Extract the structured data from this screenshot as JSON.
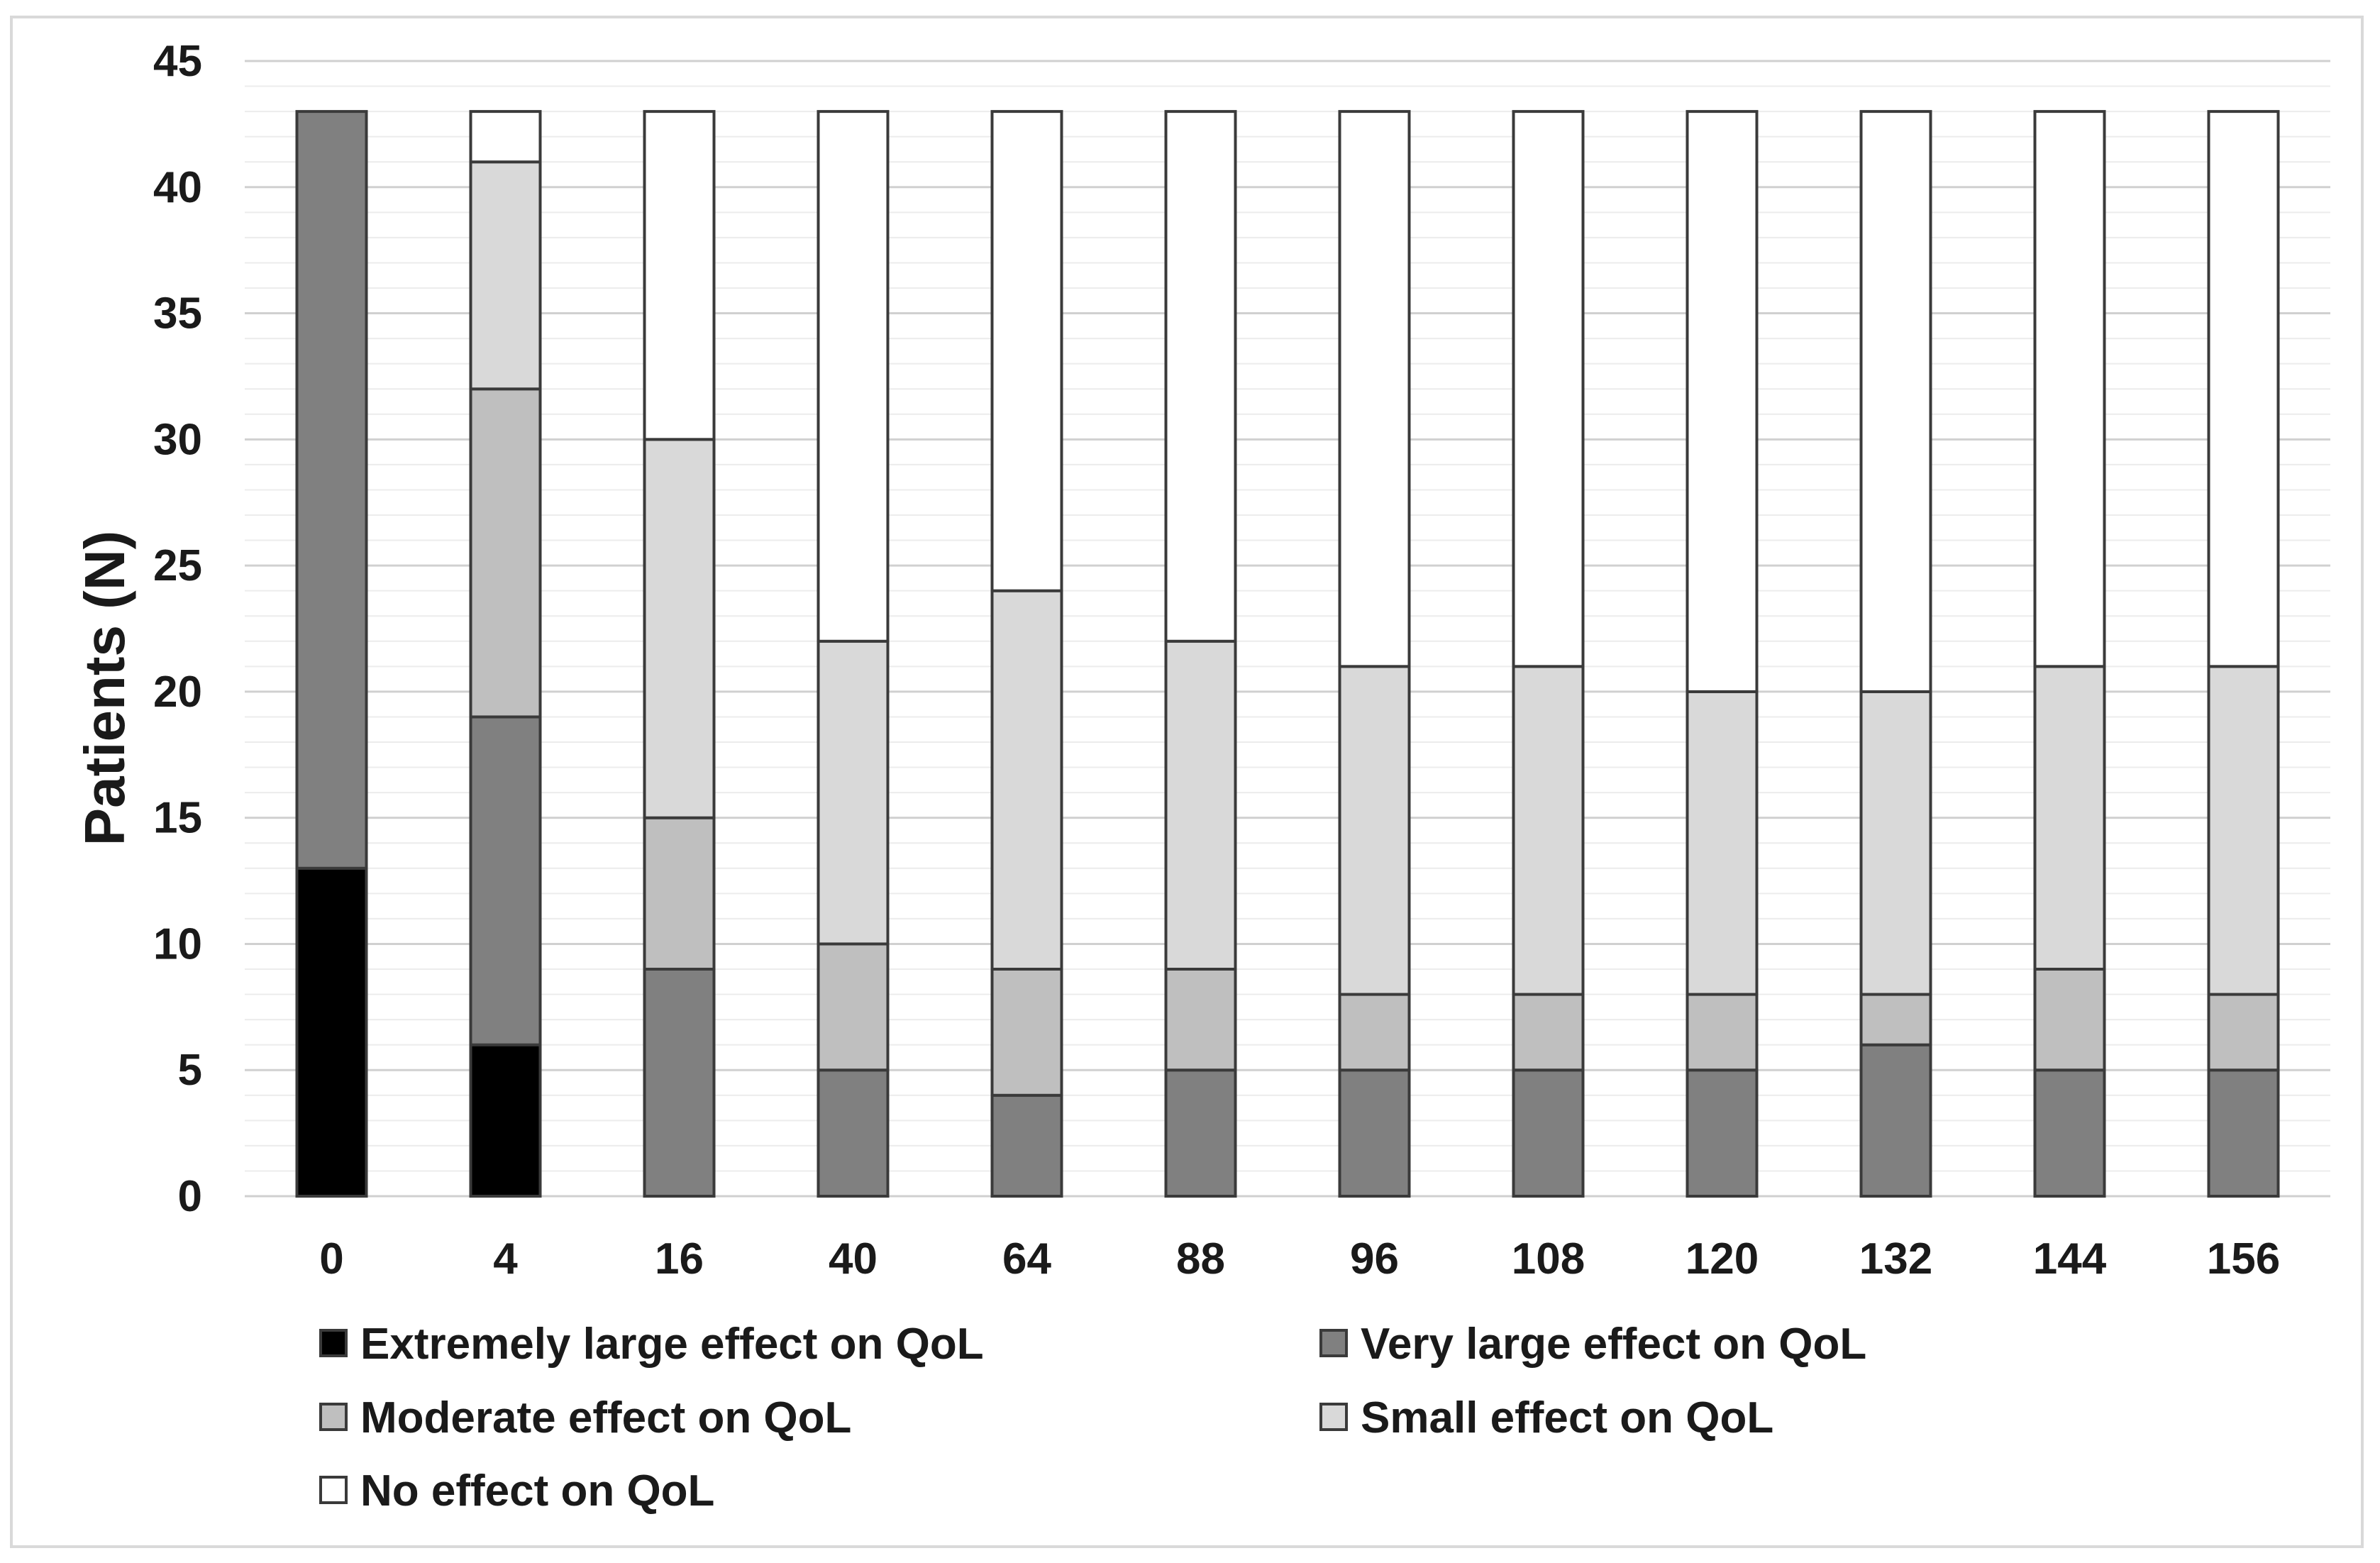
{
  "chart_data": {
    "type": "bar",
    "stacked": true,
    "title": "",
    "xlabel": "",
    "ylabel": "Patients (N)",
    "ylim": [
      0,
      45
    ],
    "yticks": [
      0,
      5,
      10,
      15,
      20,
      25,
      30,
      35,
      40,
      45
    ],
    "grid": true,
    "legend_position": "bottom",
    "categories": [
      "0",
      "4",
      "16",
      "40",
      "64",
      "88",
      "96",
      "108",
      "120",
      "132",
      "144",
      "156"
    ],
    "series": [
      {
        "name": "Extremely large effect on QoL",
        "color": "#000000",
        "values": [
          13,
          6,
          0,
          0,
          0,
          0,
          0,
          0,
          0,
          0,
          0,
          0
        ]
      },
      {
        "name": "Very large effect on QoL",
        "color": "#808080",
        "values": [
          30,
          13,
          9,
          5,
          4,
          5,
          5,
          5,
          5,
          6,
          5,
          5
        ]
      },
      {
        "name": "Moderate effect on QoL",
        "color": "#bfbfbf",
        "values": [
          0,
          13,
          6,
          5,
          5,
          4,
          3,
          3,
          3,
          2,
          4,
          3
        ]
      },
      {
        "name": "Small effect on QoL",
        "color": "#d9d9d9",
        "values": [
          0,
          9,
          15,
          12,
          15,
          13,
          13,
          13,
          12,
          12,
          12,
          13
        ]
      },
      {
        "name": "No effect on QoL",
        "color": "#ffffff",
        "values": [
          0,
          2,
          13,
          21,
          19,
          21,
          22,
          22,
          23,
          23,
          22,
          22
        ]
      }
    ]
  }
}
